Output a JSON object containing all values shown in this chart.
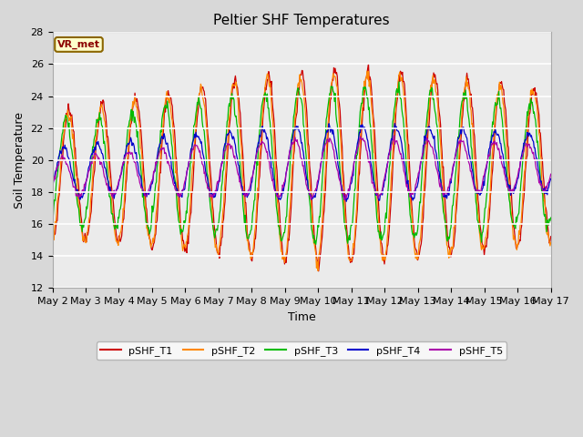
{
  "title": "Peltier SHF Temperatures",
  "xlabel": "Time",
  "ylabel": "Soil Temperature",
  "ylim": [
    12,
    28
  ],
  "yticks": [
    12,
    14,
    16,
    18,
    20,
    22,
    24,
    26,
    28
  ],
  "days": [
    "May 2",
    "May 3",
    "May 4",
    "May 5",
    "May 6",
    "May 7",
    "May 8",
    "May 9",
    "May 10",
    "May 11",
    "May 12",
    "May 13",
    "May 14",
    "May 15",
    "May 16",
    "May 17"
  ],
  "series_colors": {
    "pSHF_T1": "#cc0000",
    "pSHF_T2": "#ff8800",
    "pSHF_T3": "#00bb00",
    "pSHF_T4": "#0000cc",
    "pSHF_T5": "#aa00aa"
  },
  "legend_label": "VR_met",
  "background_color": "#d8d8d8",
  "plot_bg_color": "#ebebeb",
  "title_fontsize": 11,
  "tick_fontsize": 8,
  "label_fontsize": 9
}
